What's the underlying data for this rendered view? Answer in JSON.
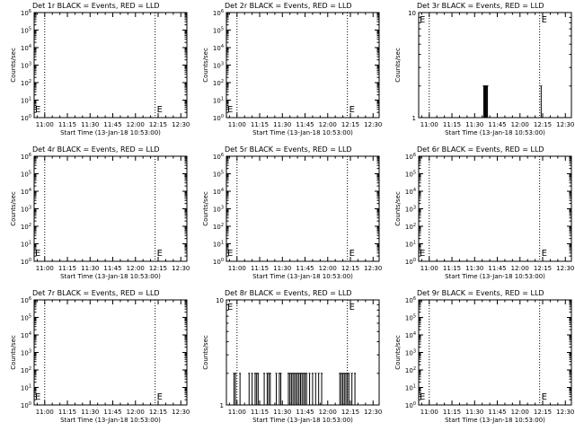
{
  "chart_data": [
    {
      "type": "line",
      "title": "Det 1r BLACK = Events, RED = LLD",
      "xlabel": "Start Time (13-Jan-18 10:53:00)",
      "ylabel": "Counts/sec",
      "yscale": "log",
      "ylim": [
        1,
        1000000
      ],
      "y_ticks": [
        "10^0",
        "10^1",
        "10^2",
        "10^3",
        "10^4",
        "10^5",
        "10^6"
      ],
      "x_ticks": [
        "11:00",
        "11:15",
        "11:30",
        "11:45",
        "12:00",
        "12:15",
        "12:30"
      ],
      "markers": [
        "E"
      ],
      "series": [
        {
          "color": "#000000",
          "spikes": []
        }
      ]
    },
    {
      "type": "line",
      "title": "Det 2r BLACK = Events, RED = LLD",
      "xlabel": "Start Time (13-Jan-18 10:53:00)",
      "ylabel": "Counts/sec",
      "yscale": "log",
      "ylim": [
        1,
        1000000
      ],
      "y_ticks": [
        "10^0",
        "10^1",
        "10^2",
        "10^3",
        "10^4",
        "10^5",
        "10^6"
      ],
      "x_ticks": [
        "11:00",
        "11:15",
        "11:30",
        "11:45",
        "12:00",
        "12:15",
        "12:30"
      ],
      "markers": [
        "E"
      ],
      "series": [
        {
          "color": "#000000",
          "spikes": []
        }
      ]
    },
    {
      "type": "line",
      "title": "Det 3r BLACK = Events, RED = LLD",
      "xlabel": "Start Time (13-Jan-18 10:53:00)",
      "ylabel": "Counts/sec",
      "yscale": "log",
      "ylim": [
        1,
        10
      ],
      "y_ticks": [
        "1",
        "10"
      ],
      "x_ticks": [
        "11:00",
        "11:15",
        "11:30",
        "11:45",
        "12:00",
        "12:15",
        "12:30"
      ],
      "markers": [
        "E"
      ],
      "series": [
        {
          "color": "#000000",
          "spikes": [
            [
              "11:36",
              2
            ],
            [
              "11:36:30",
              2
            ],
            [
              "11:37",
              2
            ],
            [
              "11:37:30",
              2
            ],
            [
              "11:38",
              2
            ],
            [
              "11:38:30",
              2
            ],
            [
              "12:14",
              2
            ]
          ]
        }
      ]
    },
    {
      "type": "line",
      "title": "Det 4r BLACK = Events, RED = LLD",
      "xlabel": "Start Time (13-Jan-18 10:53:00)",
      "ylabel": "Counts/sec",
      "yscale": "log",
      "ylim": [
        1,
        1000000
      ],
      "y_ticks": [
        "10^0",
        "10^1",
        "10^2",
        "10^3",
        "10^4",
        "10^5",
        "10^6"
      ],
      "x_ticks": [
        "11:00",
        "11:15",
        "11:30",
        "11:45",
        "12:00",
        "12:15",
        "12:30"
      ],
      "markers": [
        "E"
      ],
      "series": [
        {
          "color": "#000000",
          "spikes": []
        }
      ]
    },
    {
      "type": "line",
      "title": "Det 5r BLACK = Events, RED = LLD",
      "xlabel": "Start Time (13-Jan-18 10:53:00)",
      "ylabel": "Counts/sec",
      "yscale": "log",
      "ylim": [
        1,
        1000000
      ],
      "y_ticks": [
        "10^0",
        "10^1",
        "10^2",
        "10^3",
        "10^4",
        "10^5",
        "10^6"
      ],
      "x_ticks": [
        "11:00",
        "11:15",
        "11:30",
        "11:45",
        "12:00",
        "12:15",
        "12:30"
      ],
      "markers": [
        "E"
      ],
      "series": [
        {
          "color": "#000000",
          "spikes": []
        }
      ]
    },
    {
      "type": "line",
      "title": "Det 6r BLACK = Events, RED = LLD",
      "xlabel": "Start Time (13-Jan-18 10:53:00)",
      "ylabel": "Counts/sec",
      "yscale": "log",
      "ylim": [
        1,
        1000000
      ],
      "y_ticks": [
        "10^0",
        "10^1",
        "10^2",
        "10^3",
        "10^4",
        "10^5",
        "10^6"
      ],
      "x_ticks": [
        "11:00",
        "11:15",
        "11:30",
        "11:45",
        "12:00",
        "12:15",
        "12:30"
      ],
      "markers": [
        "E"
      ],
      "series": [
        {
          "color": "#000000",
          "spikes": []
        }
      ]
    },
    {
      "type": "line",
      "title": "Det 7r BLACK = Events, RED = LLD",
      "xlabel": "Start Time (13-Jan-18 10:53:00)",
      "ylabel": "Counts/sec",
      "yscale": "log",
      "ylim": [
        1,
        1000000
      ],
      "y_ticks": [
        "10^0",
        "10^1",
        "10^2",
        "10^3",
        "10^4",
        "10^5",
        "10^6"
      ],
      "x_ticks": [
        "11:00",
        "11:15",
        "11:30",
        "11:45",
        "12:00",
        "12:15",
        "12:30"
      ],
      "markers": [
        "E"
      ],
      "series": [
        {
          "color": "#000000",
          "spikes": []
        }
      ]
    },
    {
      "type": "line",
      "title": "Det 8r BLACK = Events, RED = LLD",
      "xlabel": "Start Time (13-Jan-18 10:53:00)",
      "ylabel": "Counts/sec",
      "yscale": "log",
      "ylim": [
        1,
        10
      ],
      "y_ticks": [
        "1",
        "10"
      ],
      "x_ticks": [
        "11:00",
        "11:15",
        "11:30",
        "11:45",
        "12:00",
        "12:15",
        "12:30"
      ],
      "markers": [
        "E"
      ],
      "series": [
        {
          "color": "#000000",
          "spikes": [
            [
              "10:58",
              2
            ],
            [
              "10:59",
              2
            ],
            [
              "11:02",
              2
            ],
            [
              "11:08",
              2
            ],
            [
              "11:10",
              2
            ],
            [
              "11:12",
              2
            ],
            [
              "11:13",
              2
            ],
            [
              "11:14",
              2
            ],
            [
              "11:18",
              2
            ],
            [
              "11:20",
              2
            ],
            [
              "11:21",
              2
            ],
            [
              "11:22",
              2
            ],
            [
              "11:26",
              2
            ],
            [
              "11:28",
              2
            ],
            [
              "11:29",
              2
            ],
            [
              "11:34",
              2
            ],
            [
              "11:35",
              2
            ],
            [
              "11:36",
              2
            ],
            [
              "11:37",
              2
            ],
            [
              "11:38",
              2
            ],
            [
              "11:39",
              2
            ],
            [
              "11:40",
              2
            ],
            [
              "11:41",
              2
            ],
            [
              "11:42",
              2
            ],
            [
              "11:43",
              2
            ],
            [
              "11:44",
              2
            ],
            [
              "11:45",
              2
            ],
            [
              "11:46",
              2
            ],
            [
              "11:48",
              2
            ],
            [
              "11:50",
              2
            ],
            [
              "11:52",
              2
            ],
            [
              "11:54",
              2
            ],
            [
              "11:56",
              2
            ],
            [
              "12:08",
              2
            ],
            [
              "12:09",
              2
            ],
            [
              "12:10",
              2
            ],
            [
              "12:11",
              2
            ],
            [
              "12:12",
              2
            ],
            [
              "12:13",
              2
            ],
            [
              "12:14",
              2
            ],
            [
              "12:16",
              2
            ],
            [
              "12:18",
              2
            ]
          ]
        }
      ]
    },
    {
      "type": "line",
      "title": "Det 9r BLACK = Events, RED = LLD",
      "xlabel": "Start Time (13-Jan-18 10:53:00)",
      "ylabel": "Counts/sec",
      "yscale": "log",
      "ylim": [
        1,
        1000000
      ],
      "y_ticks": [
        "10^0",
        "10^1",
        "10^2",
        "10^3",
        "10^4",
        "10^5",
        "10^6"
      ],
      "x_ticks": [
        "11:00",
        "11:15",
        "11:30",
        "11:45",
        "12:00",
        "12:15",
        "12:30"
      ],
      "markers": [
        "E"
      ],
      "series": [
        {
          "color": "#000000",
          "spikes": []
        }
      ]
    }
  ]
}
